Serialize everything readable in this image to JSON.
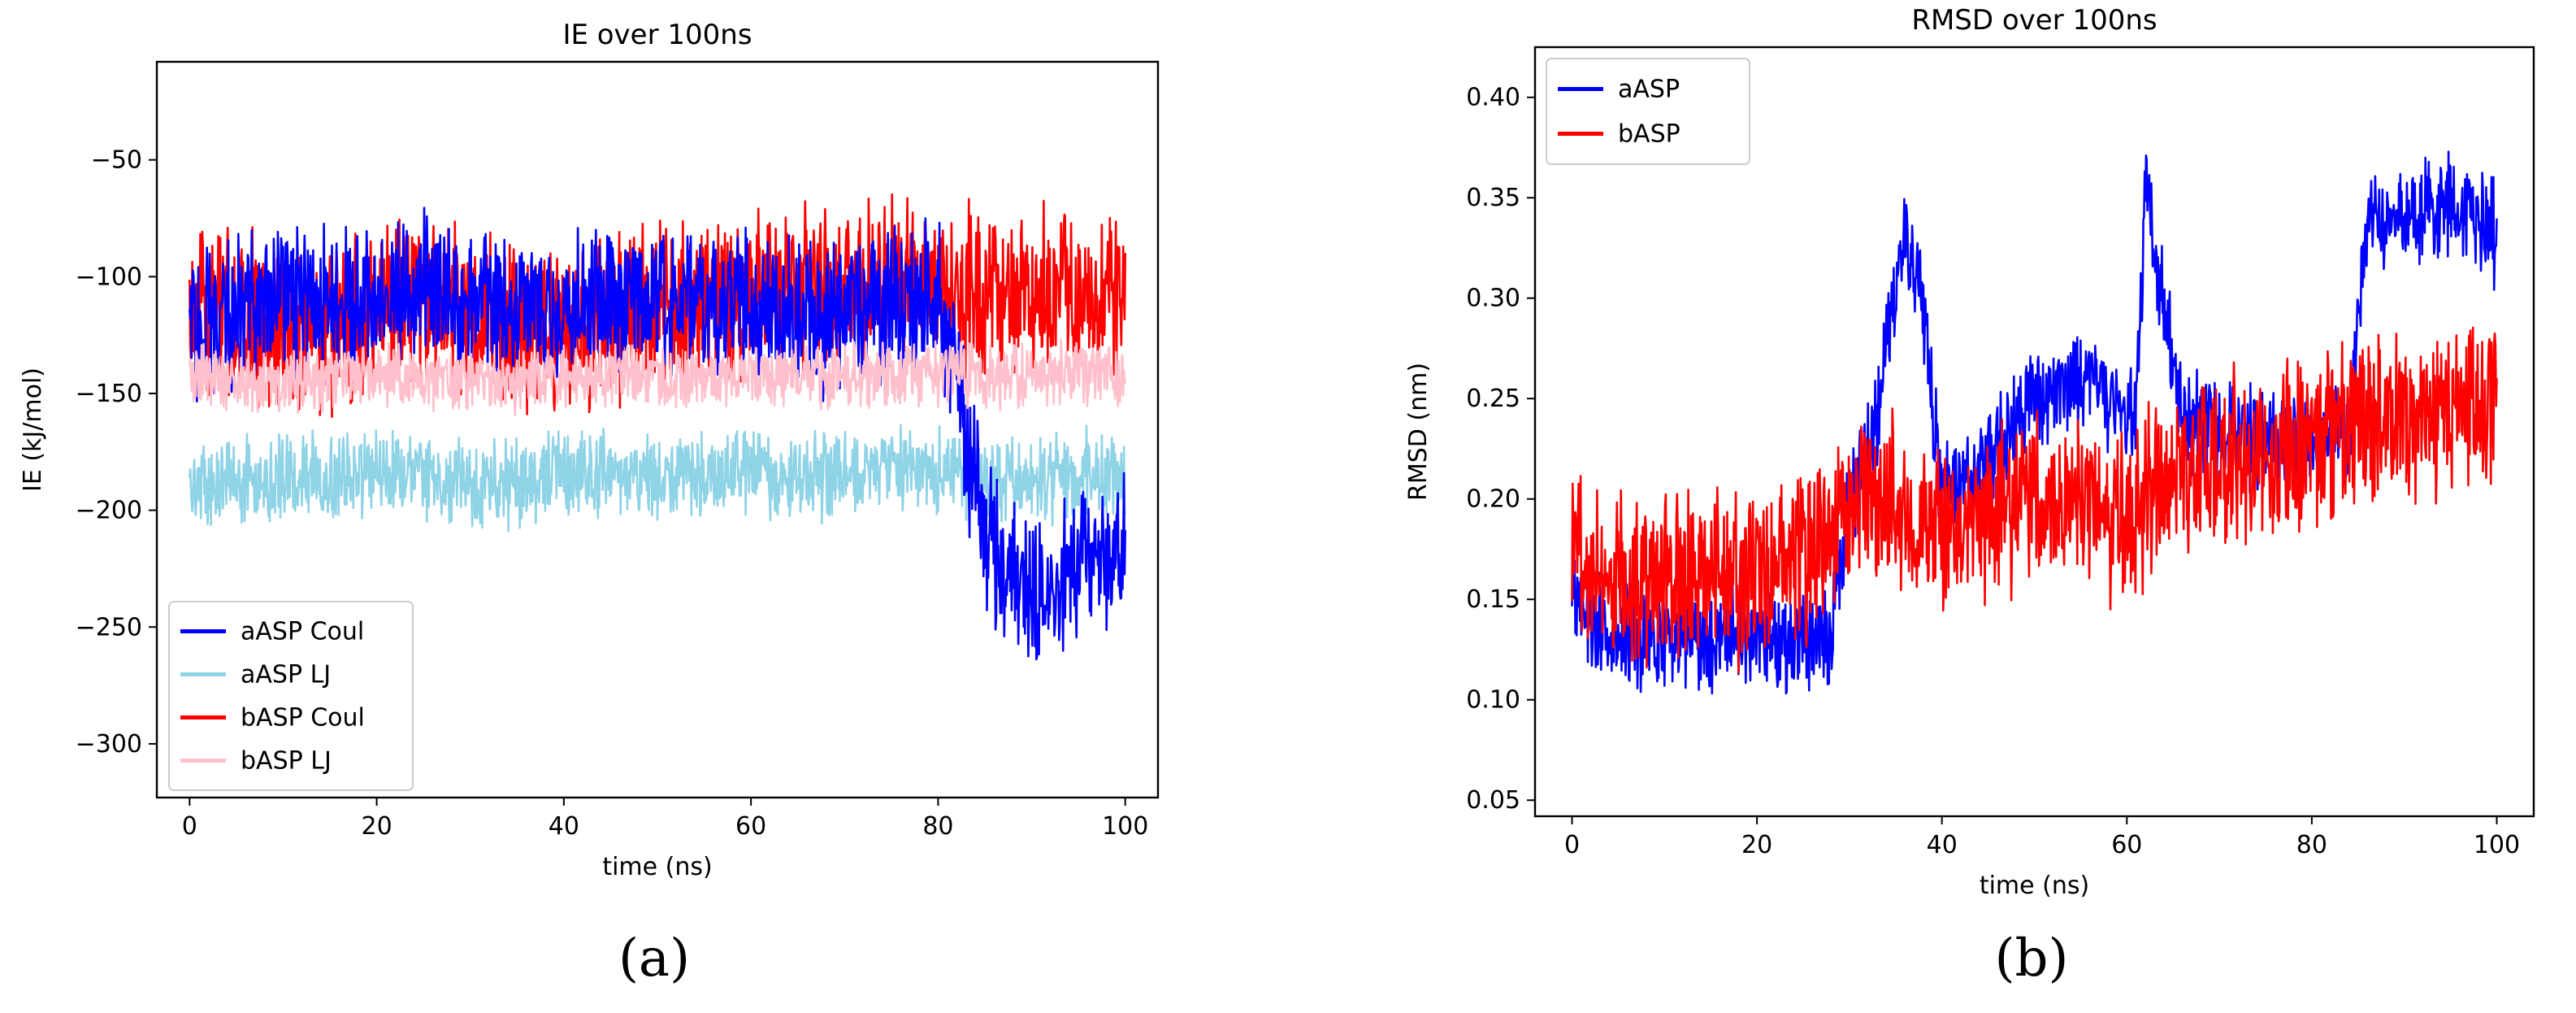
{
  "chart_data": [
    {
      "type": "line",
      "panel_label": "(a)",
      "title": "IE over 100ns",
      "xlabel": "time (ns)",
      "ylabel": "IE (kJ/mol)",
      "xlim": [
        -3.5,
        103.5
      ],
      "ylim": [
        -323,
        -8
      ],
      "xticks": [
        0,
        20,
        40,
        60,
        80,
        100
      ],
      "yticks": [
        -300,
        -250,
        -200,
        -150,
        -100,
        -50
      ],
      "legend_position": "lower-left",
      "series": [
        {
          "name": "aASP LJ",
          "color": "#8fd3e6",
          "x": [
            0,
            5,
            10,
            15,
            20,
            25,
            30,
            35,
            40,
            45,
            50,
            55,
            60,
            65,
            70,
            75,
            80,
            85,
            90,
            95,
            100
          ],
          "y": [
            -190,
            -188,
            -185,
            -187,
            -182,
            -186,
            -190,
            -188,
            -184,
            -186,
            -185,
            -183,
            -184,
            -186,
            -185,
            -183,
            -184,
            -186,
            -187,
            -185,
            -184
          ],
          "spread": 22
        },
        {
          "name": "bASP Coul",
          "color": "#ff0000",
          "x": [
            0,
            5,
            10,
            15,
            20,
            25,
            30,
            35,
            40,
            45,
            50,
            55,
            60,
            65,
            70,
            75,
            80,
            85,
            90,
            95,
            100
          ],
          "y": [
            -112,
            -118,
            -122,
            -120,
            -115,
            -110,
            -118,
            -122,
            -124,
            -117,
            -112,
            -110,
            -108,
            -107,
            -105,
            -103,
            -104,
            -106,
            -108,
            -105,
            -104
          ],
          "spread": 42
        },
        {
          "name": "aASP Coul",
          "color": "#0000ff",
          "x": [
            0,
            5,
            10,
            15,
            20,
            25,
            30,
            35,
            40,
            45,
            50,
            55,
            60,
            65,
            70,
            75,
            80,
            85,
            90,
            95,
            100
          ],
          "y": [
            -120,
            -115,
            -110,
            -112,
            -108,
            -106,
            -110,
            -112,
            -115,
            -110,
            -108,
            -110,
            -112,
            -118,
            -115,
            -112,
            -108,
            -210,
            -240,
            -225,
            -215
          ],
          "spread": 38
        },
        {
          "name": "bASP LJ",
          "color": "#ffc0cb",
          "x": [
            0,
            5,
            10,
            15,
            20,
            25,
            30,
            35,
            40,
            45,
            50,
            55,
            60,
            65,
            70,
            75,
            80,
            85,
            90,
            95,
            100
          ],
          "y": [
            -142,
            -144,
            -145,
            -143,
            -142,
            -144,
            -145,
            -144,
            -143,
            -142,
            -143,
            -144,
            -142,
            -141,
            -143,
            -142,
            -141,
            -142,
            -143,
            -142,
            -141
          ],
          "spread": 16
        }
      ],
      "legend_order": [
        "aASP Coul",
        "aASP LJ",
        "bASP Coul",
        "bASP LJ"
      ]
    },
    {
      "type": "line",
      "panel_label": "(b)",
      "title": "RMSD over 100ns",
      "xlabel": "time (ns)",
      "ylabel": "RMSD (nm)",
      "xlim": [
        -4,
        104
      ],
      "ylim": [
        0.042,
        0.425
      ],
      "xticks": [
        0,
        20,
        40,
        60,
        80,
        100
      ],
      "yticks": [
        0.05,
        0.1,
        0.15,
        0.2,
        0.25,
        0.3,
        0.35,
        0.4
      ],
      "ytick_labels": [
        "0.05",
        "0.10",
        "0.15",
        "0.20",
        "0.25",
        "0.30",
        "0.35",
        "0.40"
      ],
      "legend_position": "upper-left",
      "series": [
        {
          "name": "aASP",
          "color": "#0000ff",
          "x": [
            0,
            2,
            5,
            10,
            15,
            20,
            25,
            28,
            30,
            33,
            36,
            38,
            40,
            45,
            50,
            55,
            58,
            61,
            62,
            64,
            66,
            70,
            75,
            80,
            84,
            86,
            90,
            95,
            100
          ],
          "y": [
            0.16,
            0.14,
            0.13,
            0.13,
            0.13,
            0.13,
            0.13,
            0.13,
            0.2,
            0.24,
            0.33,
            0.3,
            0.2,
            0.22,
            0.25,
            0.26,
            0.25,
            0.24,
            0.36,
            0.3,
            0.24,
            0.23,
            0.23,
            0.23,
            0.23,
            0.34,
            0.34,
            0.35,
            0.33
          ],
          "spread": 0.03
        },
        {
          "name": "bASP",
          "color": "#ff0000",
          "x": [
            0,
            2,
            5,
            10,
            15,
            20,
            25,
            28,
            30,
            35,
            40,
            45,
            50,
            55,
            60,
            65,
            70,
            75,
            80,
            85,
            90,
            95,
            100
          ],
          "y": [
            0.18,
            0.17,
            0.16,
            0.16,
            0.16,
            0.16,
            0.17,
            0.18,
            0.2,
            0.2,
            0.18,
            0.19,
            0.2,
            0.2,
            0.19,
            0.21,
            0.22,
            0.22,
            0.23,
            0.24,
            0.24,
            0.24,
            0.25
          ],
          "spread": 0.05
        }
      ],
      "legend_order": [
        "aASP",
        "bASP"
      ]
    }
  ]
}
